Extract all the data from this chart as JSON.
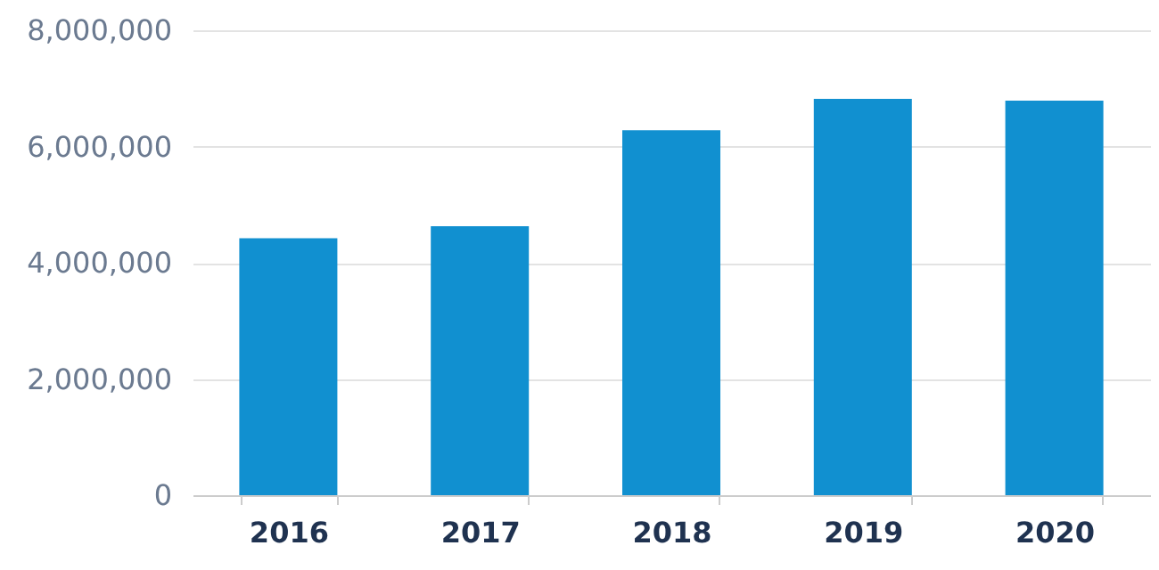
{
  "chart_data": {
    "type": "bar",
    "categories": [
      "2016",
      "2017",
      "2018",
      "2019",
      "2020"
    ],
    "values": [
      4420000,
      4630000,
      6280000,
      6820000,
      6790000
    ],
    "color": "#1190d0",
    "ylim": [
      0,
      8000000
    ],
    "yticks": [
      0,
      {
        "value": 2000000,
        "label": "2,000,000"
      },
      {
        "value": 4000000,
        "label": "4,000,000"
      },
      {
        "value": 6000000,
        "label": "6,000,000"
      },
      {
        "value": 8000000,
        "label": "8,000,000"
      }
    ],
    "grid": "y"
  }
}
